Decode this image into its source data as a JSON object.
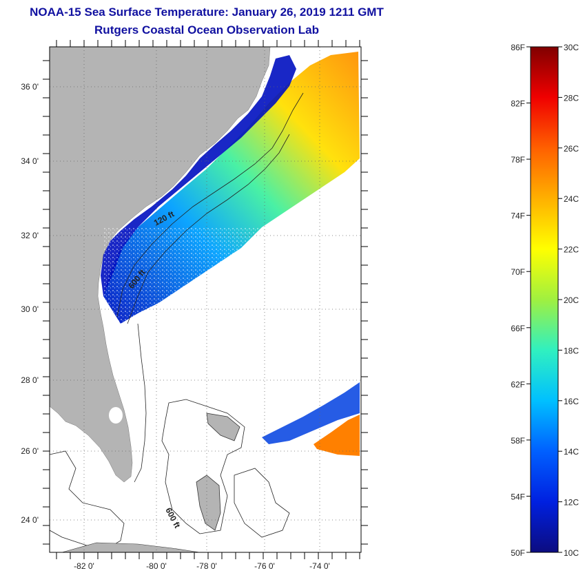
{
  "title": {
    "line1": "NOAA-15 Sea Surface Temperature:  January 26, 2019 1211 GMT",
    "line2": "Rutgers Coastal Ocean Observation Lab"
  },
  "map": {
    "lat_labels": [
      "36 0'",
      "34 0'",
      "32 0'",
      "30 0'",
      "28 0'",
      "26 0'",
      "24 0'"
    ],
    "lon_labels": [
      "-82 0'",
      "-80 0'",
      "-78 0'",
      "-76 0'",
      "-74 0'"
    ],
    "contours": [
      "120 ft",
      "600 ft",
      "600 ft"
    ]
  },
  "colorbar": {
    "fahrenheit": [
      "86F",
      "82F",
      "78F",
      "74F",
      "70F",
      "66F",
      "62F",
      "58F",
      "54F",
      "50F"
    ],
    "celsius": [
      "30C",
      "28C",
      "26C",
      "24C",
      "22C",
      "20C",
      "18C",
      "16C",
      "14C",
      "12C",
      "10C"
    ],
    "stops": [
      "#0c0c80",
      "#0020e0",
      "#0060ff",
      "#00c0ff",
      "#30f0c0",
      "#a0f040",
      "#ffff00",
      "#ffb000",
      "#ff6000",
      "#f00000",
      "#800000"
    ]
  }
}
